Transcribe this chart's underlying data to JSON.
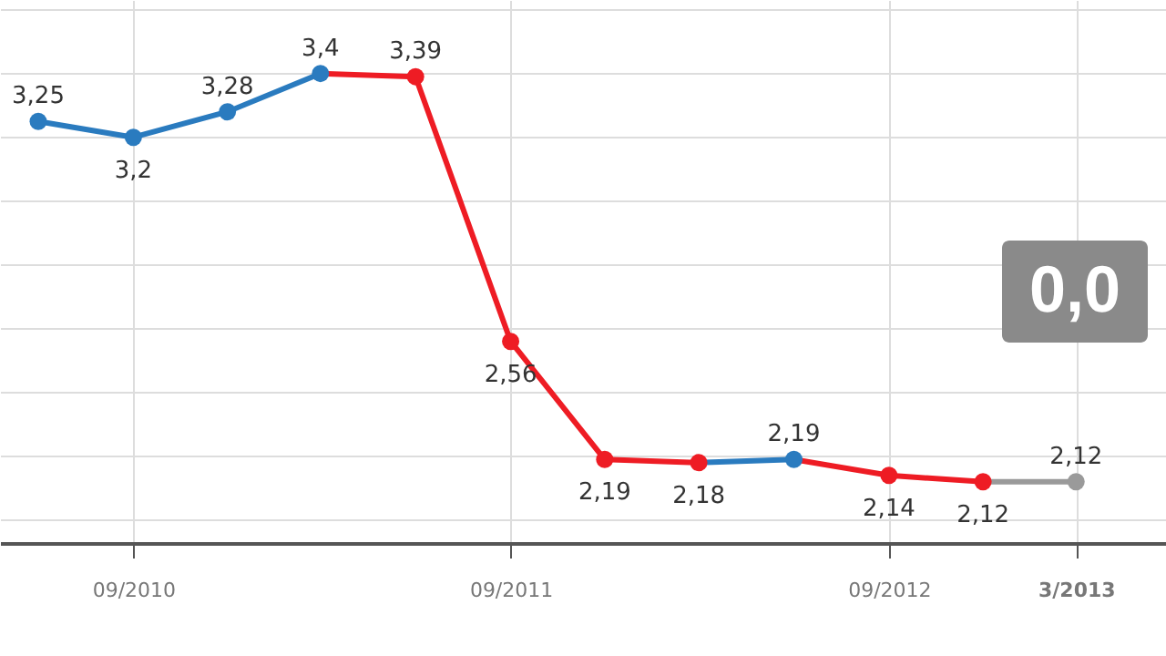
{
  "chart_data": {
    "type": "line",
    "x": [
      "2010-06",
      "2010-09",
      "2010-12",
      "2011-03",
      "2011-06",
      "2011-09",
      "2011-12",
      "2012-03",
      "2012-06",
      "2012-09",
      "2012-12",
      "2013-03"
    ],
    "values": [
      3.25,
      3.2,
      3.28,
      3.4,
      3.39,
      2.56,
      2.19,
      2.18,
      2.19,
      2.14,
      2.12,
      2.12
    ],
    "colors": [
      "#2a7bbf",
      "#2a7bbf",
      "#2a7bbf",
      "#2a7bbf",
      "#ee1c24",
      "#ee1c24",
      "#ee1c24",
      "#ee1c24",
      "#2a7bbf",
      "#ee1c24",
      "#ee1c24",
      "#9a9a9a"
    ],
    "value_labels": [
      "3,25",
      "3,2",
      "3,28",
      "3,4",
      "3,39",
      "2,56",
      "2,19",
      "2,18",
      "2,19",
      "2,14",
      "2,12",
      "2,12"
    ],
    "xlim": [
      "2010-04-25",
      "2013-05-27"
    ],
    "xticks": [
      {
        "value": "2010-09",
        "label": "09/2010"
      },
      {
        "value": "2011-09",
        "label": "09/2011"
      },
      {
        "value": "2012-09",
        "label": "09/2012"
      },
      {
        "value": "2013-03",
        "label": "3/2013"
      }
    ],
    "annotations": [
      "0,0"
    ],
    "marker": "circle",
    "grid": true,
    "tick_labels": "x"
  }
}
